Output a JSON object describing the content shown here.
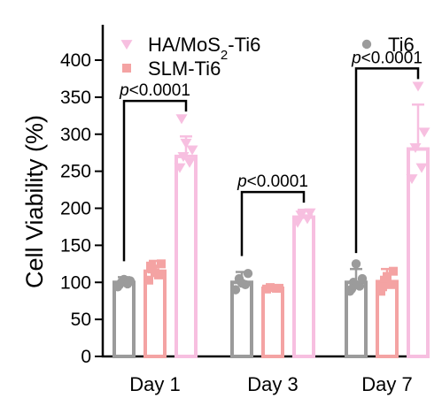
{
  "chart_data": {
    "type": "bar",
    "ylabel": "Cell Viability (%)",
    "ylim": [
      0,
      400
    ],
    "yticks": [
      0,
      50,
      100,
      150,
      200,
      250,
      300,
      350,
      400
    ],
    "categories": [
      "Day 1",
      "Day 3",
      "Day 7"
    ],
    "series": [
      {
        "name": "Ti6",
        "color": "#9b9b9b",
        "marker": "circle",
        "values": [
          100,
          100,
          100
        ],
        "err": [
          7,
          14,
          18
        ],
        "points": [
          [
            94,
            98,
            100,
            102,
            104,
            97,
            101
          ],
          [
            90,
            97,
            105,
            112,
            99
          ],
          [
            88,
            95,
            100,
            105,
            125,
            91
          ]
        ]
      },
      {
        "name": "SLM-Ti6",
        "color": "#f4a3a3",
        "marker": "square",
        "values": [
          115,
          92,
          101
        ],
        "err": [
          14,
          3,
          17
        ],
        "points": [
          [
            103,
            110,
            118,
            125,
            113,
            122
          ],
          [
            91,
            92,
            93,
            92
          ],
          [
            88,
            97,
            103,
            115,
            108,
            94
          ]
        ]
      },
      {
        "name": "HA/MoS2-Ti6",
        "color": "#f7bfe0",
        "marker": "triangle-down",
        "values": [
          270,
          188,
          280
        ],
        "err": [
          27,
          10,
          60
        ],
        "points": [
          [
            255,
            262,
            270,
            279,
            288,
            321
          ],
          [
            181,
            186,
            191,
            194
          ],
          [
            240,
            255,
            282,
            303,
            365
          ]
        ]
      }
    ],
    "legend": [
      {
        "series": 2,
        "label_main": "HA/MoS",
        "label_sub": "2",
        "label_rest": "-Ti6"
      },
      {
        "series": 1,
        "label_main": "SLM-Ti6",
        "label_sub": "",
        "label_rest": ""
      },
      {
        "series": 0,
        "label_main": "Ti6",
        "label_sub": "",
        "label_rest": ""
      }
    ],
    "legend_position": "top",
    "significance": [
      {
        "category": 0,
        "text_p": "p",
        "text_rest": "<0.0001"
      },
      {
        "category": 1,
        "text_p": "p",
        "text_rest": "<0.0001"
      },
      {
        "category": 2,
        "text_p": "p",
        "text_rest": "<0.0001"
      }
    ],
    "grid": false
  }
}
